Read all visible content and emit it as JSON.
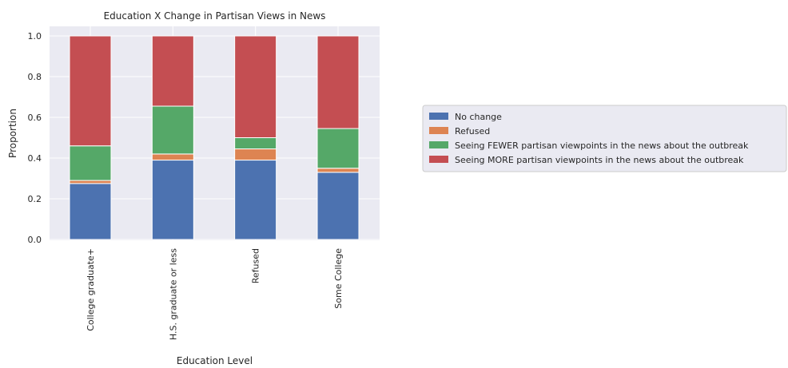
{
  "chart_data": {
    "type": "bar",
    "stacked": true,
    "title": "Education X Change in Partisan Views in News",
    "xlabel": "Education Level",
    "ylabel": "Proportion",
    "ylim": [
      0,
      1.0
    ],
    "yticks": [
      "0.0",
      "0.2",
      "0.4",
      "0.6",
      "0.8",
      "1.0"
    ],
    "categories": [
      "College graduate+",
      "H.S. graduate or less",
      "Refused",
      "Some College"
    ],
    "series": [
      {
        "name": "No change",
        "color": "#4c72b0",
        "values": [
          0.275,
          0.39,
          0.39,
          0.33
        ]
      },
      {
        "name": "Refused",
        "color": "#dd8452",
        "values": [
          0.015,
          0.03,
          0.055,
          0.02
        ]
      },
      {
        "name": "Seeing FEWER partisan viewpoints in the news about the outbreak",
        "color": "#55a868",
        "values": [
          0.17,
          0.235,
          0.055,
          0.195
        ]
      },
      {
        "name": "Seeing MORE partisan viewpoints in the news about the outbreak",
        "color": "#c44e52",
        "values": [
          0.54,
          0.345,
          0.5,
          0.455
        ]
      }
    ],
    "grid": true,
    "legend_position": "right"
  }
}
